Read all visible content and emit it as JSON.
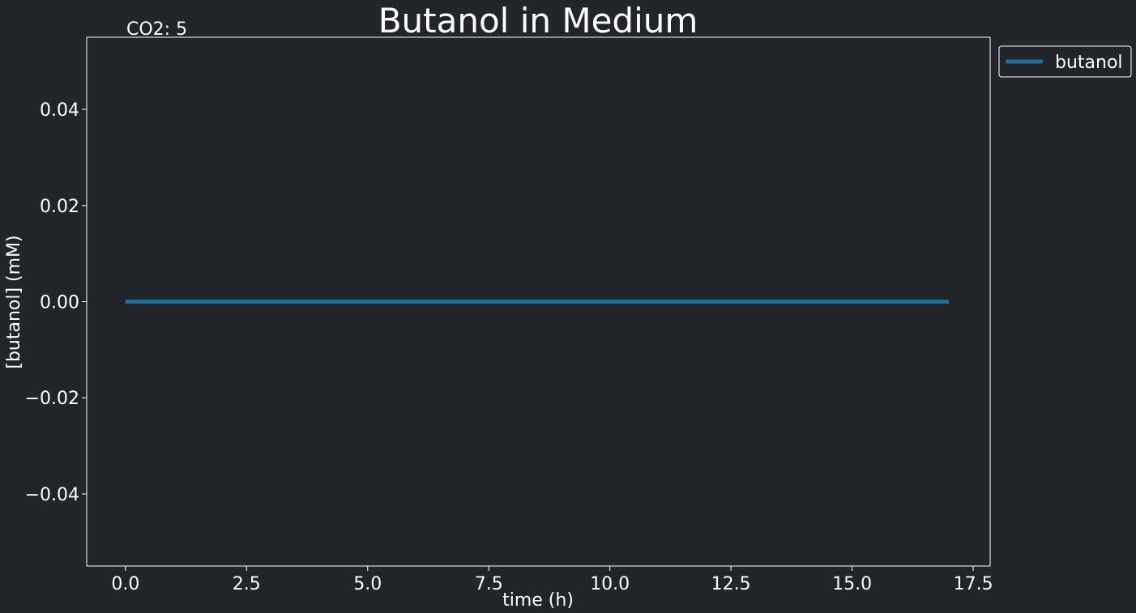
{
  "chart_data": {
    "type": "line",
    "title": "Butanol in Medium",
    "annotation": "CO2: 5",
    "xlabel": "time (h)",
    "ylabel": "[butanol] (mM)",
    "xlim": [
      -0.8,
      17.85
    ],
    "ylim": [
      -0.055,
      0.055
    ],
    "xticks": [
      0.0,
      2.5,
      5.0,
      7.5,
      10.0,
      12.5,
      15.0,
      17.5
    ],
    "xtick_labels": [
      "0.0",
      "2.5",
      "5.0",
      "7.5",
      "10.0",
      "12.5",
      "15.0",
      "17.5"
    ],
    "yticks": [
      -0.04,
      -0.02,
      0.0,
      0.02,
      0.04
    ],
    "ytick_labels": [
      "−0.04",
      "−0.02",
      "0.00",
      "0.02",
      "0.04"
    ],
    "grid": false,
    "legend_position": "outside-top-right",
    "series": [
      {
        "name": "butanol",
        "color": "#2b6a93",
        "x": [
          0,
          17
        ],
        "y": [
          0,
          0
        ]
      }
    ]
  },
  "colors": {
    "background": "#22252a",
    "axes": "#ffffff",
    "text": "#ffffff",
    "line": "#2b6a93"
  }
}
